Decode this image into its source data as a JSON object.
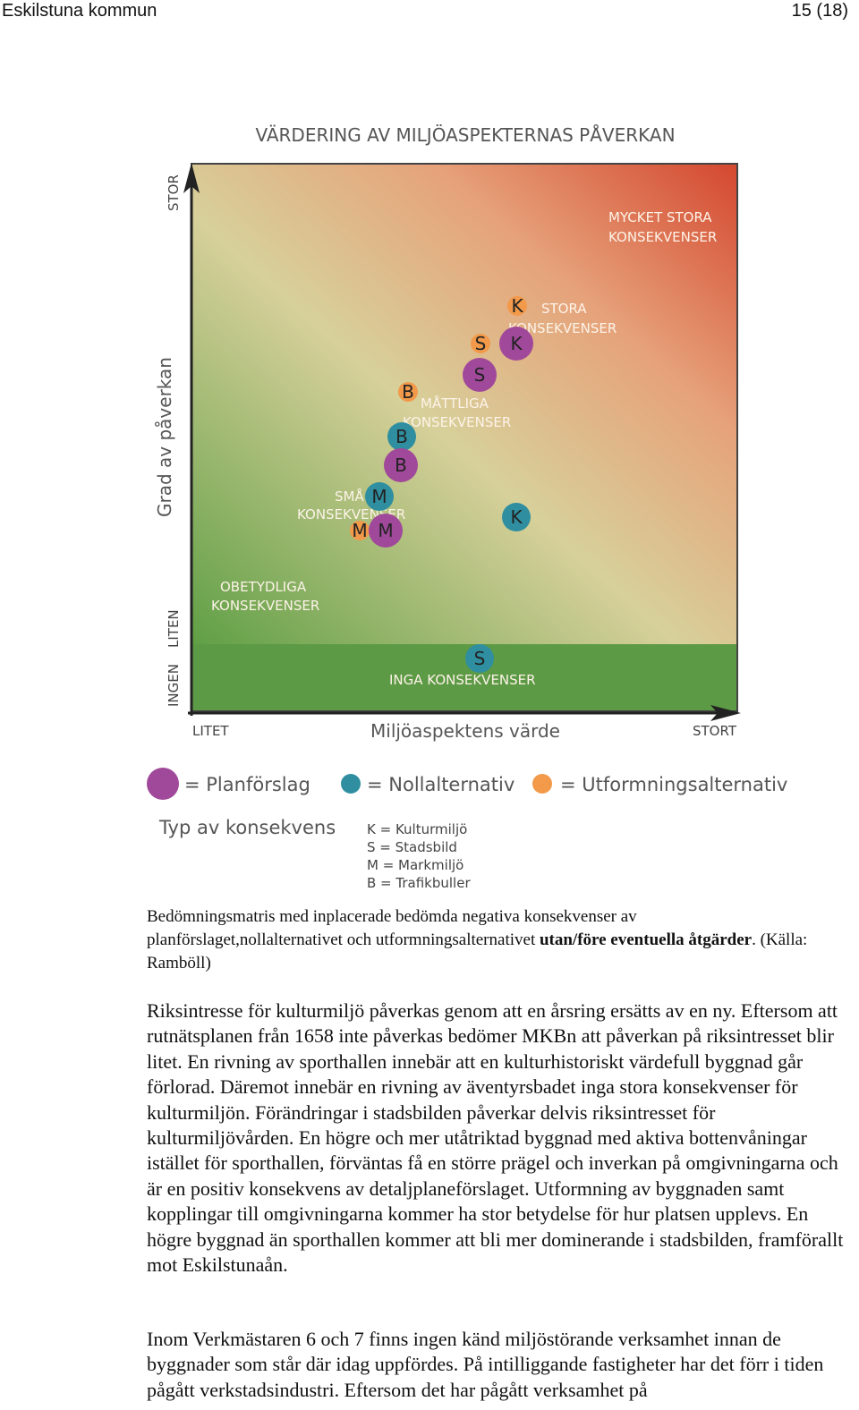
{
  "header": {
    "org": "Eskilstuna kommun",
    "page": "15 (18)"
  },
  "figure": {
    "title": "VÄRDERING AV MILJÖASPEKTERNAS PÅVERKAN",
    "y_axis_label": "Grad av påverkan",
    "y_top": "STOR",
    "y_liten": "LITEN",
    "y_ingen": "INGEN",
    "x_axis_label": "Miljöaspektens värde",
    "x_left": "LITET",
    "x_right": "STORT",
    "zones": {
      "mycket_stora_1": "MYCKET STORA",
      "mycket_stora_2": "KONSEKVENSER",
      "stora_1": "STORA",
      "stora_2": "KONSEKVENSER",
      "mattliga_1": "MÅTTLIGA",
      "mattliga_2": "KONSEKVENSER",
      "sma_1": "SMÅ",
      "sma_2": "KONSEKVENSER",
      "obetydliga_1": "OBETYDLIGA",
      "obetydliga_2": "KONSEKVENSER",
      "inga": "INGA KONSEKVENSER"
    },
    "markers": [
      {
        "letter": "K",
        "type": "utformning"
      },
      {
        "letter": "K",
        "type": "planforslag"
      },
      {
        "letter": "S",
        "type": "utformning"
      },
      {
        "letter": "S",
        "type": "planforslag"
      },
      {
        "letter": "B",
        "type": "utformning"
      },
      {
        "letter": "B",
        "type": "nollalternativ"
      },
      {
        "letter": "B",
        "type": "planforslag"
      },
      {
        "letter": "M",
        "type": "nollalternativ"
      },
      {
        "letter": "M",
        "type": "utformning"
      },
      {
        "letter": "M",
        "type": "planforslag"
      },
      {
        "letter": "K",
        "type": "nollalternativ"
      },
      {
        "letter": "S",
        "type": "nollalternativ"
      }
    ],
    "legend": {
      "planforslag": "= Planförslag",
      "nollalternativ": "= Nollalternativ",
      "utformning": "= Utformningsalternativ"
    },
    "type_title": "Typ av konsekvens",
    "types": [
      "K = Kulturmiljö",
      "S = Stadsbild",
      "M = Markmiljö",
      "B = Trafikbuller"
    ],
    "colors": {
      "planforslag": "#a0499a",
      "nollalternativ": "#2f8fa0",
      "utformning": "#f2994a",
      "green": "#6fa84f",
      "red": "#d9573a"
    }
  },
  "caption": {
    "text": "Bedömningsmatris med inplacerade bedömda negativa konsekvenser av planförslaget,nollalternativet och utformningsalternativet ",
    "bold": "utan/före eventuella åtgärder",
    "tail": ". (Källa: Ramböll)"
  },
  "paragraphs": {
    "p1": "Riksintresse för kulturmiljö påverkas genom att en årsring ersätts av en ny. Eftersom att rutnätsplanen från 1658 inte påverkas bedömer MKBn att påverkan på riksintresset blir litet. En rivning av sporthallen innebär att en kulturhistoriskt värdefull byggnad går förlorad. Däremot innebär en rivning av äventyrsbadet inga stora konsekvenser för kulturmiljön. Förändringar i stadsbilden påverkar delvis riksintresset för kulturmiljövården. En högre och mer utåtriktad byggnad med aktiva bottenvåningar istället för sporthallen, förväntas få en större prägel och inverkan på omgivningarna och är en positiv konsekvens av detaljplaneförslaget. Utformning av byggnaden samt kopplingar till omgivningarna kommer ha stor betydelse för hur platsen upplevs. En högre byggnad än sporthallen kommer att bli mer dominerande i stadsbilden, framförallt mot Eskilstunaån.",
    "p2": "Inom Verkmästaren 6 och 7 finns ingen känd miljöstörande verksamhet innan de byggnader som står där idag uppfördes. På intilliggande fastigheter har det förr i tiden pågått verkstadsindustri. Eftersom det har pågått verksamhet på"
  }
}
